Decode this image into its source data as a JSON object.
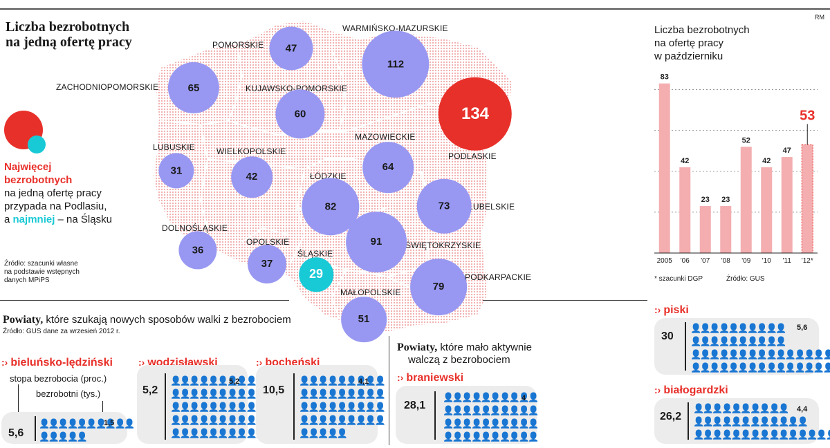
{
  "header": {
    "title_line1": "Liczba bezrobotnych",
    "title_line2": "na jedną ofertę pracy",
    "credit": "RM"
  },
  "legend": {
    "most_line1": "Najwięcej",
    "most_line2": "bezrobotnych",
    "text_line1": "na jedną ofertę pracy",
    "text_line2": "przypada na Podlasiu,",
    "text_prefix": "a",
    "least_word": "najmniej",
    "text_suffix": "– na Śląsku",
    "colors": {
      "max": "#e8302a",
      "min": "#18c9d6",
      "regular": "#9898f2",
      "map_dots": "#f2b2b2"
    }
  },
  "source_map": {
    "line1": "Źródło: szacunki własne",
    "line2": "na podstawie wstępnych",
    "line3": "danych MPiPS"
  },
  "chart_data": [
    {
      "type": "map-bubbles",
      "title": "Liczba bezrobotnych na jedną ofertę pracy",
      "regions": [
        {
          "name": "POMORSKIE",
          "value": 47
        },
        {
          "name": "WARMIŃSKO-MAZURSKIE",
          "value": 112
        },
        {
          "name": "ZACHODNIOPOMORSKIE",
          "value": 65
        },
        {
          "name": "KUJAWSKO-POMORSKIE",
          "value": 60
        },
        {
          "name": "PODLASKIE",
          "value": 134
        },
        {
          "name": "LUBUSKIE",
          "value": 31
        },
        {
          "name": "WIELKOPOLSKIE",
          "value": 42
        },
        {
          "name": "MAZOWIECKIE",
          "value": 64
        },
        {
          "name": "ŁÓDZKIE",
          "value": 82
        },
        {
          "name": "LUBELSKIE",
          "value": 73
        },
        {
          "name": "DOLNOŚLĄSKIE",
          "value": 36
        },
        {
          "name": "OPOLSKIE",
          "value": 37
        },
        {
          "name": "ŚLĄSKIE",
          "value": 29
        },
        {
          "name": "ŚWIĘTOKRZYSKIE",
          "value": 91
        },
        {
          "name": "PODKARPACKIE",
          "value": 79
        },
        {
          "name": "MAŁOPOLSKIE",
          "value": 51
        }
      ]
    },
    {
      "type": "bar",
      "title": "Liczba bezrobotnych na ofertę pracy w październiku",
      "categories": [
        "2005",
        "'06",
        "'07",
        "'08",
        "'09",
        "'10",
        "'11",
        "'12*"
      ],
      "values": [
        83,
        42,
        23,
        23,
        52,
        42,
        47,
        53
      ],
      "highlight_last": true,
      "ylim": [
        0,
        90
      ],
      "grid": true
    }
  ],
  "bar_chart": {
    "title_line1": "Liczba bezrobotnych",
    "title_line2": "na ofertę pracy",
    "title_line3": "w październiku",
    "footnote": "* szacunki DGP",
    "source": "Źródło: GUS"
  },
  "section_active": {
    "head_bold": "Powiaty,",
    "head_rest": "które szukają nowych sposobów walki z bezrobociem",
    "source": "Źródło: GUS dane za wrzesień 2012 r.",
    "legend_rate": "stopa bezrobocia (proc.)",
    "legend_unemployed": "bezrobotni (tys.)"
  },
  "section_passive": {
    "head_bold": "Powiaty,",
    "head_rest_line1": "które mało aktywnie",
    "head_rest_line2": "walczą z bezrobociem"
  },
  "counties": [
    {
      "name": "bieluńsko-lędziński",
      "rate": "5,6",
      "unemployed": "1,5"
    },
    {
      "name": "wodzisławski",
      "rate": "5,2",
      "unemployed": "5,2"
    },
    {
      "name": "bocheński",
      "rate": "10,5",
      "unemployed": "4,1"
    },
    {
      "name": "braniewski",
      "rate": "28,1",
      "unemployed": "4"
    },
    {
      "name": "piski",
      "rate": "30",
      "unemployed": "5,6"
    },
    {
      "name": "białogardzki",
      "rate": "26,2",
      "unemployed": "4,4"
    }
  ]
}
